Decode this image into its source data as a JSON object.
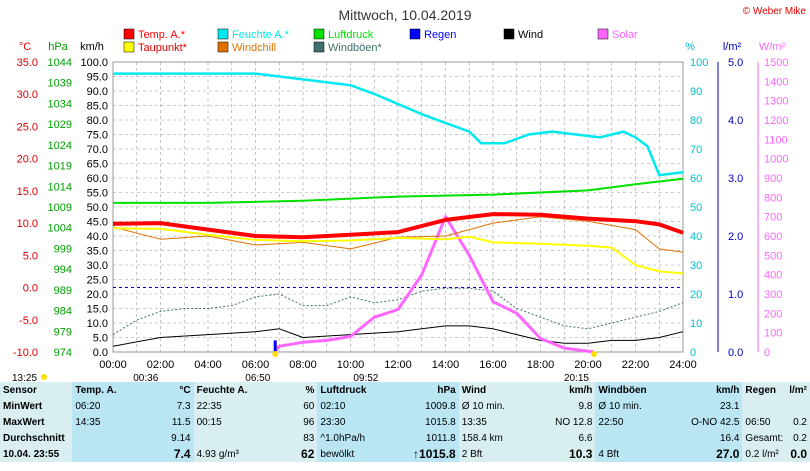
{
  "title": "Mittwoch, 10.04.2019",
  "copyright": "© Weber Mike",
  "units": {
    "temp": "°C",
    "pressure": "hPa",
    "wind": "km/h",
    "humidity": "%",
    "rain": "l/m²",
    "solar": "W/m²"
  },
  "legend": [
    {
      "label": "Temp. A.*",
      "color": "#ff0000"
    },
    {
      "label": "Feuchte A.*",
      "color": "#00e8f0"
    },
    {
      "label": "Luftdruck",
      "color": "#00e000"
    },
    {
      "label": "Regen",
      "color": "#0000ff"
    },
    {
      "label": "Wind",
      "color": "#000000"
    },
    {
      "label": "Solar",
      "color": "#ff66ff"
    },
    {
      "label": "Taupunkt*",
      "color": "#ffff00"
    },
    {
      "label": "Windchill",
      "color": "#e07000"
    },
    {
      "label": "Windböen*",
      "color": "#407070"
    }
  ],
  "axis_labels": {
    "temp": [
      "35.0",
      "30.0",
      "25.0",
      "20.0",
      "15.0",
      "10.0",
      "5.0",
      "0.0",
      "-5.0",
      "-10.0"
    ],
    "pressure": [
      "1044",
      "1039",
      "1034",
      "1029",
      "1024",
      "1019",
      "1014",
      "1009",
      "1004",
      "999",
      "994",
      "989",
      "984",
      "979",
      "974"
    ],
    "wind": [
      "100.0",
      "95.0",
      "90.0",
      "85.0",
      "80.0",
      "75.0",
      "70.0",
      "65.0",
      "60.0",
      "55.0",
      "50.0",
      "45.0",
      "40.0",
      "35.0",
      "30.0",
      "25.0",
      "20.0",
      "15.0",
      "10.0",
      "5.0",
      "0.0"
    ],
    "humidity": [
      "100",
      "90",
      "80",
      "70",
      "60",
      "50",
      "40",
      "30",
      "20",
      "10",
      "0"
    ],
    "rain": [
      "5.0",
      "4.0",
      "3.0",
      "2.0",
      "1.0",
      "0.0"
    ],
    "solar": [
      "1500",
      "1400",
      "1300",
      "1200",
      "1100",
      "1000",
      "900",
      "800",
      "700",
      "600",
      "500",
      "400",
      "300",
      "200",
      "100",
      "0"
    ],
    "time": [
      "00:00",
      "02:00",
      "04:00",
      "06:00",
      "08:00",
      "10:00",
      "12:00",
      "14:00",
      "16:00",
      "18:00",
      "20:00",
      "22:00",
      "24:00"
    ]
  },
  "markers": {
    "sunrise": "06:50",
    "sunset": "20:15",
    "moonrise": "13:25",
    "moon_a": "00:36",
    "moon_b": "09:52"
  },
  "chart_data": {
    "type": "line",
    "title": "Mittwoch, 10.04.2019",
    "x_unit": "hours",
    "series": [
      {
        "name": "Temp. A.*",
        "unit": "°C",
        "points": [
          [
            0,
            9.9
          ],
          [
            2,
            10
          ],
          [
            4,
            9
          ],
          [
            6,
            8
          ],
          [
            8,
            7.8
          ],
          [
            10,
            8.2
          ],
          [
            12,
            8.6
          ],
          [
            14,
            10.5
          ],
          [
            16,
            11.4
          ],
          [
            18,
            11.3
          ],
          [
            20,
            10.7
          ],
          [
            22,
            10.3
          ],
          [
            23,
            9.8
          ],
          [
            24,
            8.5
          ]
        ]
      },
      {
        "name": "Taupunkt*",
        "unit": "°C",
        "points": [
          [
            0,
            9.2
          ],
          [
            2,
            9.1
          ],
          [
            4,
            8.2
          ],
          [
            6,
            7.4
          ],
          [
            8,
            7.2
          ],
          [
            10,
            7.3
          ],
          [
            12,
            7.7
          ],
          [
            14,
            7.5
          ],
          [
            15,
            7.9
          ],
          [
            16,
            7
          ],
          [
            18,
            6.8
          ],
          [
            20,
            6.5
          ],
          [
            21,
            6.2
          ],
          [
            22,
            3.5
          ],
          [
            23,
            2.5
          ],
          [
            24,
            2.2
          ]
        ]
      },
      {
        "name": "Windchill",
        "unit": "°C",
        "points": [
          [
            0,
            9.4
          ],
          [
            2,
            7.5
          ],
          [
            4,
            8
          ],
          [
            6,
            6.6
          ],
          [
            8,
            7
          ],
          [
            10,
            6
          ],
          [
            12,
            7.8
          ],
          [
            14,
            8
          ],
          [
            15,
            9
          ],
          [
            16,
            10
          ],
          [
            18,
            11
          ],
          [
            20,
            10.3
          ],
          [
            22,
            9
          ],
          [
            23,
            6
          ],
          [
            24,
            5.5
          ]
        ]
      },
      {
        "name": "Feuchte A.*",
        "unit": "%",
        "points": [
          [
            0,
            96
          ],
          [
            4,
            96
          ],
          [
            6,
            96
          ],
          [
            8,
            94
          ],
          [
            10,
            92
          ],
          [
            11,
            89
          ],
          [
            13,
            82
          ],
          [
            14,
            79
          ],
          [
            15,
            76
          ],
          [
            15.5,
            72
          ],
          [
            16.5,
            72
          ],
          [
            17.5,
            75
          ],
          [
            18.5,
            76
          ],
          [
            19.5,
            75
          ],
          [
            20.5,
            74
          ],
          [
            21.5,
            76
          ],
          [
            22,
            74
          ],
          [
            22.5,
            71
          ],
          [
            23,
            61
          ],
          [
            24,
            62
          ]
        ]
      },
      {
        "name": "Luftdruck",
        "unit": "hPa",
        "points": [
          [
            0,
            1010
          ],
          [
            4,
            1010
          ],
          [
            8,
            1010.5
          ],
          [
            12,
            1011.5
          ],
          [
            16,
            1012
          ],
          [
            20,
            1013
          ],
          [
            22,
            1014.5
          ],
          [
            24,
            1015.8
          ]
        ]
      },
      {
        "name": "Wind",
        "unit": "km/h",
        "points": [
          [
            0,
            2
          ],
          [
            2,
            5
          ],
          [
            4,
            6
          ],
          [
            6,
            7
          ],
          [
            7,
            8
          ],
          [
            8,
            5
          ],
          [
            10,
            6
          ],
          [
            12,
            7
          ],
          [
            13,
            8
          ],
          [
            14,
            9
          ],
          [
            15,
            9
          ],
          [
            16,
            8
          ],
          [
            17,
            6
          ],
          [
            18,
            4
          ],
          [
            19,
            3
          ],
          [
            20,
            3
          ],
          [
            21,
            4
          ],
          [
            22,
            4
          ],
          [
            23,
            5
          ],
          [
            24,
            7
          ]
        ]
      },
      {
        "name": "Windböen*",
        "unit": "km/h",
        "points": [
          [
            0,
            6
          ],
          [
            1,
            11
          ],
          [
            2,
            14
          ],
          [
            3,
            15
          ],
          [
            4,
            15
          ],
          [
            5,
            16
          ],
          [
            6,
            19
          ],
          [
            7,
            20
          ],
          [
            8,
            16
          ],
          [
            9,
            16
          ],
          [
            10,
            19
          ],
          [
            11,
            17
          ],
          [
            12,
            18
          ],
          [
            13,
            21
          ],
          [
            14,
            22
          ],
          [
            15,
            22
          ],
          [
            16,
            21
          ],
          [
            17,
            15
          ],
          [
            18,
            12
          ],
          [
            19,
            9
          ],
          [
            20,
            8
          ],
          [
            21,
            10
          ],
          [
            22,
            12
          ],
          [
            23,
            14
          ],
          [
            24,
            17
          ]
        ]
      },
      {
        "name": "Solar",
        "unit": "W/m²",
        "points": [
          [
            6.8,
            0
          ],
          [
            7,
            30
          ],
          [
            8,
            50
          ],
          [
            9,
            60
          ],
          [
            10,
            80
          ],
          [
            11,
            180
          ],
          [
            12,
            220
          ],
          [
            13,
            400
          ],
          [
            14,
            700
          ],
          [
            15,
            500
          ],
          [
            16,
            260
          ],
          [
            17,
            200
          ],
          [
            18,
            70
          ],
          [
            19,
            20
          ],
          [
            20.25,
            0
          ]
        ]
      },
      {
        "name": "Regen",
        "unit": "l/m²",
        "points": [
          [
            6.83,
            0.2
          ]
        ]
      }
    ],
    "ylim": {
      "temp": [
        -10,
        35
      ],
      "pressure": [
        974,
        1044
      ],
      "wind": [
        0,
        100
      ],
      "humidity": [
        0,
        100
      ],
      "rain": [
        0,
        5
      ],
      "solar": [
        0,
        1500
      ]
    },
    "grid": true,
    "legend_position": "top"
  },
  "stats": {
    "headers": [
      "Sensor",
      "Temp. A.",
      "°C",
      "Feuchte A.",
      "%",
      "Luftdruck",
      "hPa",
      "Wind",
      "km/h",
      "Windböen",
      "km/h",
      "Regen",
      "l/m²"
    ],
    "rows": [
      [
        "MinWert",
        "06:20",
        "7.3",
        "22:35",
        "60",
        "02:10",
        "1009.8",
        "Ø 10 min.",
        "9.8",
        "Ø 10 min.",
        "23.1",
        "",
        ""
      ],
      [
        "MaxWert",
        "14:35",
        "11.5",
        "00:15",
        "96",
        "23:30",
        "1015.8",
        "13:35",
        "NO 12.8",
        "22:50",
        "O-NO 42.5",
        "06:50",
        "0.2"
      ],
      [
        "Durchschnitt",
        "",
        "9.14",
        "",
        "83",
        "^1.0hPa/h",
        "1011.8",
        "158.4 km",
        "6.6",
        "",
        "16.4",
        "Gesamt:",
        "0.2"
      ],
      [
        "10.04. 23:55",
        "",
        "7.4",
        "4.93 g/m³",
        "62",
        "bewölkt",
        "↑1015.8",
        "2 Bft",
        "10.3",
        "4 Bft",
        "27.0",
        "0.2 l/m²",
        "0.0"
      ]
    ]
  }
}
